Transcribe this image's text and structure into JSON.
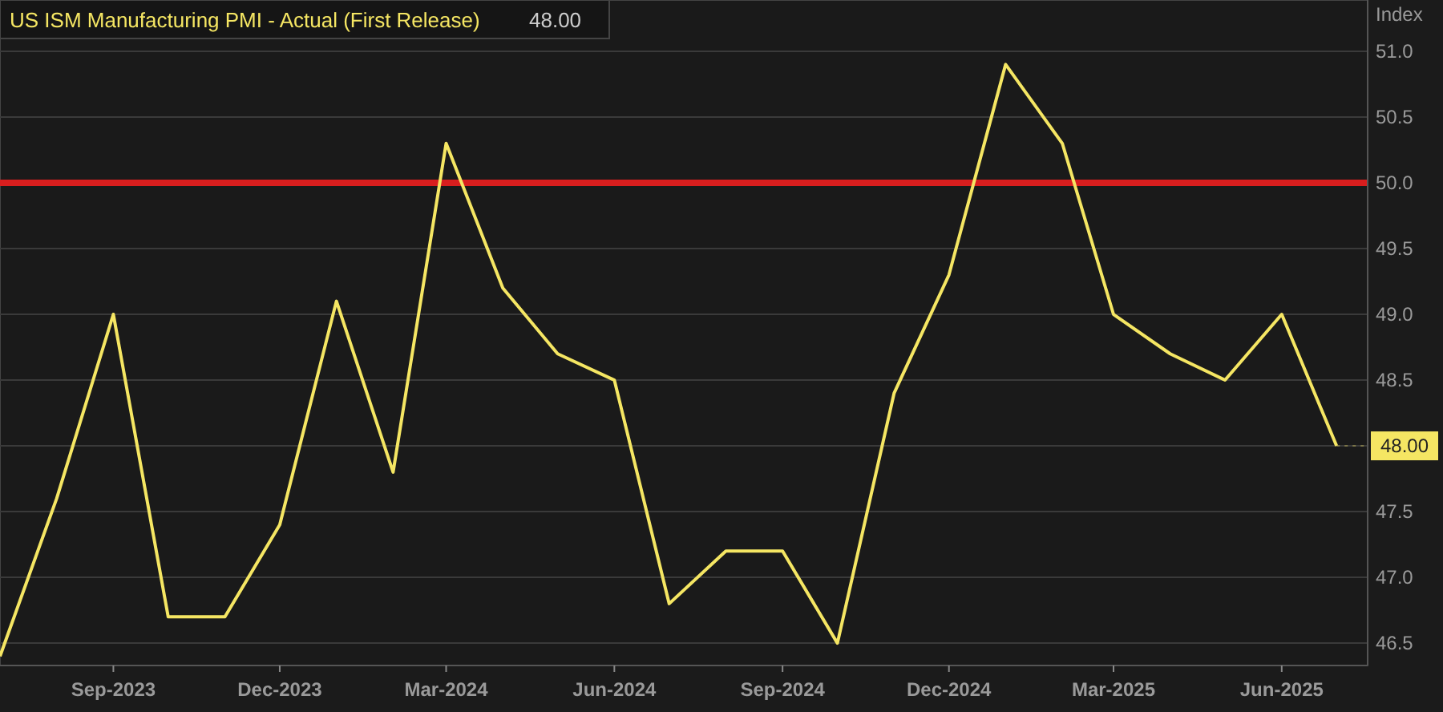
{
  "chart_data": {
    "type": "line",
    "ylabel": "Index",
    "legend": "top left",
    "grid": "y",
    "line_style": "solid",
    "x": [
      "2023-07",
      "2023-08",
      "2023-09",
      "2023-10",
      "2023-11",
      "2023-12",
      "2024-01",
      "2024-02",
      "2024-03",
      "2024-04",
      "2024-05",
      "2024-06",
      "2024-07",
      "2024-08",
      "2024-09",
      "2024-10",
      "2024-11",
      "2024-12",
      "2025-01",
      "2025-02",
      "2025-03",
      "2025-04",
      "2025-05",
      "2025-06",
      "2025-07"
    ],
    "series": [
      {
        "name": "US ISM Manufacturing PMI - Actual (First Release)",
        "color": "#f5e663",
        "values": [
          46.4,
          47.6,
          49.0,
          46.7,
          46.7,
          47.4,
          49.1,
          47.8,
          50.3,
          49.2,
          48.7,
          48.5,
          46.8,
          47.2,
          47.2,
          46.5,
          48.4,
          49.3,
          50.9,
          50.3,
          49.0,
          48.7,
          48.5,
          49.0,
          48.0
        ]
      }
    ],
    "xlim": [
      "2023-07-01",
      "2025-07-18"
    ],
    "xticks": [
      {
        "value": "2023-09-01",
        "label": "Sep-2023"
      },
      {
        "value": "2023-12-01",
        "label": "Dec-2023"
      },
      {
        "value": "2024-03-01",
        "label": "Mar-2024"
      },
      {
        "value": "2024-06-01",
        "label": "Jun-2024"
      },
      {
        "value": "2024-09-01",
        "label": "Sep-2024"
      },
      {
        "value": "2024-12-01",
        "label": "Dec-2024"
      },
      {
        "value": "2025-03-01",
        "label": "Mar-2025"
      },
      {
        "value": "2025-06-01",
        "label": "Jun-2025"
      }
    ],
    "ylim": [
      46.33,
      51.39
    ],
    "yticks": [
      {
        "value": 46.5,
        "label": "46.5"
      },
      {
        "value": 47,
        "label": "47.0"
      },
      {
        "value": 47.5,
        "label": "47.5"
      },
      {
        "value": 48,
        "label": null
      },
      {
        "value": 48.5,
        "label": "48.5"
      },
      {
        "value": 49,
        "label": "49.0"
      },
      {
        "value": 49.5,
        "label": "49.5"
      },
      {
        "value": 50,
        "label": "50.0"
      },
      {
        "value": 50.5,
        "label": "50.5"
      },
      {
        "value": 51,
        "label": "51.0"
      }
    ],
    "ref_lines": [
      {
        "axis": "y",
        "value": 50,
        "color": "#d81e1e"
      }
    ],
    "annotations": [
      {
        "text": "48.00",
        "x": "2025-07",
        "y": 48
      }
    ]
  }
}
